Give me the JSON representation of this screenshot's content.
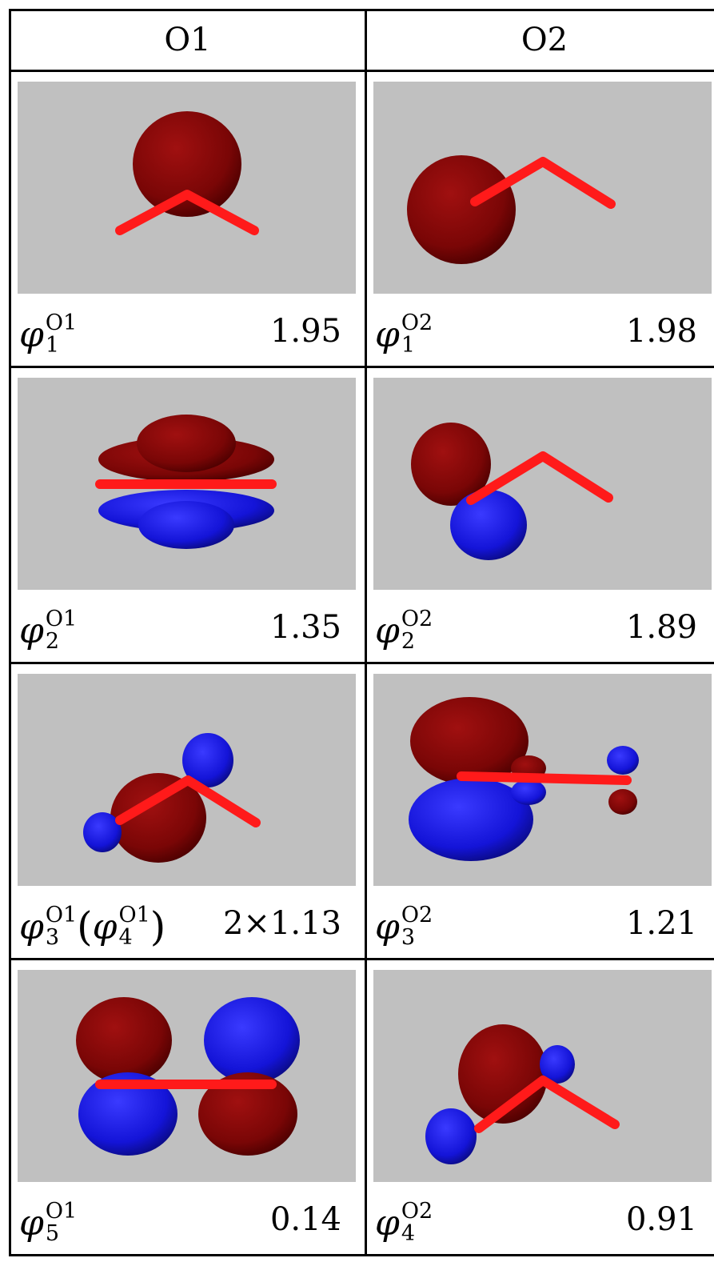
{
  "table": {
    "headers": [
      "O1",
      "O2"
    ],
    "rows": [
      [
        {
          "label": [
            {
              "symbol": "φ",
              "sub": "1",
              "sup": "O1"
            }
          ],
          "value": 1.95
        },
        {
          "label": [
            {
              "symbol": "φ",
              "sub": "1",
              "sup": "O2"
            }
          ],
          "value": 1.98
        }
      ],
      [
        {
          "label": [
            {
              "symbol": "φ",
              "sub": "2",
              "sup": "O1"
            }
          ],
          "value": 1.35
        },
        {
          "label": [
            {
              "symbol": "φ",
              "sub": "2",
              "sup": "O2"
            }
          ],
          "value": 1.89
        }
      ],
      [
        {
          "label": [
            {
              "symbol": "φ",
              "sub": "3",
              "sup": "O1"
            },
            {
              "symbol": "("
            },
            {
              "symbol": "φ",
              "sub": "4",
              "sup": "O1"
            },
            {
              "symbol": ")"
            }
          ],
          "value": "2×1.13"
        },
        {
          "label": [
            {
              "symbol": "φ",
              "sub": "3",
              "sup": "O2"
            }
          ],
          "value": 1.21
        }
      ],
      [
        {
          "label": [
            {
              "symbol": "φ",
              "sub": "5",
              "sup": "O1"
            }
          ],
          "value": 0.14
        },
        {
          "label": [
            {
              "symbol": "φ",
              "sub": "4",
              "sup": "O2"
            }
          ],
          "value": 0.91
        }
      ]
    ]
  }
}
